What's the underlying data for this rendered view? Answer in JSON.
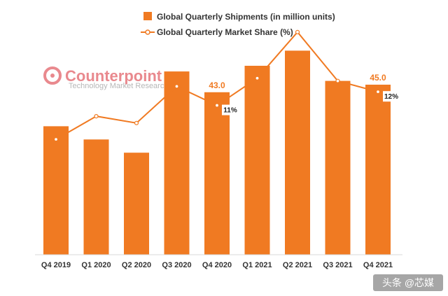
{
  "chart_data": {
    "type": "bar",
    "categories": [
      "Q4 2019",
      "Q1 2020",
      "Q2 2020",
      "Q3 2020",
      "Q4 2020",
      "Q1 2021",
      "Q2 2021",
      "Q3 2021",
      "Q4 2021"
    ],
    "series": [
      {
        "name": "Global Quarterly Shipments (in million units)",
        "type": "bar",
        "values": [
          34,
          30.5,
          27,
          48.5,
          43,
          50,
          54,
          46,
          45
        ],
        "data_labels": [
          "",
          "",
          "",
          "",
          "43.0",
          "",
          "",
          "",
          "45.0"
        ]
      },
      {
        "name": "Global Quarterly Market Share (%)",
        "type": "line",
        "values": [
          8.5,
          10.2,
          9.7,
          12.4,
          11,
          13,
          16.4,
          12.8,
          12
        ],
        "data_labels": [
          "",
          "",
          "",
          "",
          "11%",
          "",
          "",
          "",
          "12%"
        ]
      }
    ],
    "ylim": [
      0,
      60
    ],
    "share_ylim": [
      0,
      16.7
    ],
    "grid": false,
    "legend_position": "top-center",
    "colors": {
      "bar": "#F07A22",
      "line": "#F07A22",
      "label": "#F07A22"
    }
  },
  "logo": {
    "name": "Counterpoint",
    "tagline": "Technology Market Research"
  },
  "watermark": "头条 @芯媒"
}
